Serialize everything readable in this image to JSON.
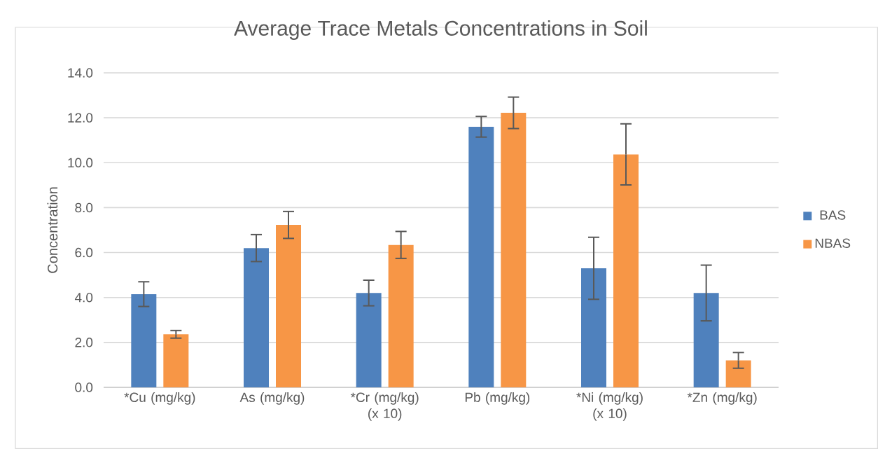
{
  "chart_data": {
    "type": "bar",
    "title": "Average Trace Metals Concentrations in Soil",
    "ylabel": "Concentration",
    "categories": [
      "*Cu (mg/kg)",
      "As (mg/kg)",
      "*Cr (mg/kg) (x 10)",
      "Pb (mg/kg)",
      "*Ni (mg/kg) (x 10)",
      "*Zn (mg/kg)"
    ],
    "series": [
      {
        "name": "BAS",
        "color": "#4f81bd",
        "values": [
          4.15,
          6.2,
          4.2,
          11.6,
          5.3,
          4.2
        ],
        "errors": [
          0.55,
          0.6,
          0.57,
          0.46,
          1.38,
          1.24
        ]
      },
      {
        "name": "NBAS",
        "color": "#f79646",
        "values": [
          2.36,
          7.23,
          6.34,
          12.22,
          10.37,
          1.2
        ],
        "errors": [
          0.17,
          0.6,
          0.6,
          0.7,
          1.36,
          0.35
        ]
      }
    ],
    "ylim": [
      0,
      14
    ],
    "yticks": [
      {
        "value": 0,
        "label": "0.0"
      },
      {
        "value": 2,
        "label": "2.0"
      },
      {
        "value": 4,
        "label": "4.0"
      },
      {
        "value": 6,
        "label": "6.0"
      },
      {
        "value": 8,
        "label": "8.0"
      },
      {
        "value": 10,
        "label": "10.0"
      },
      {
        "value": 12,
        "label": "12.0"
      },
      {
        "value": 14,
        "label": "14.0"
      }
    ],
    "grid": "y",
    "legend": "right"
  }
}
